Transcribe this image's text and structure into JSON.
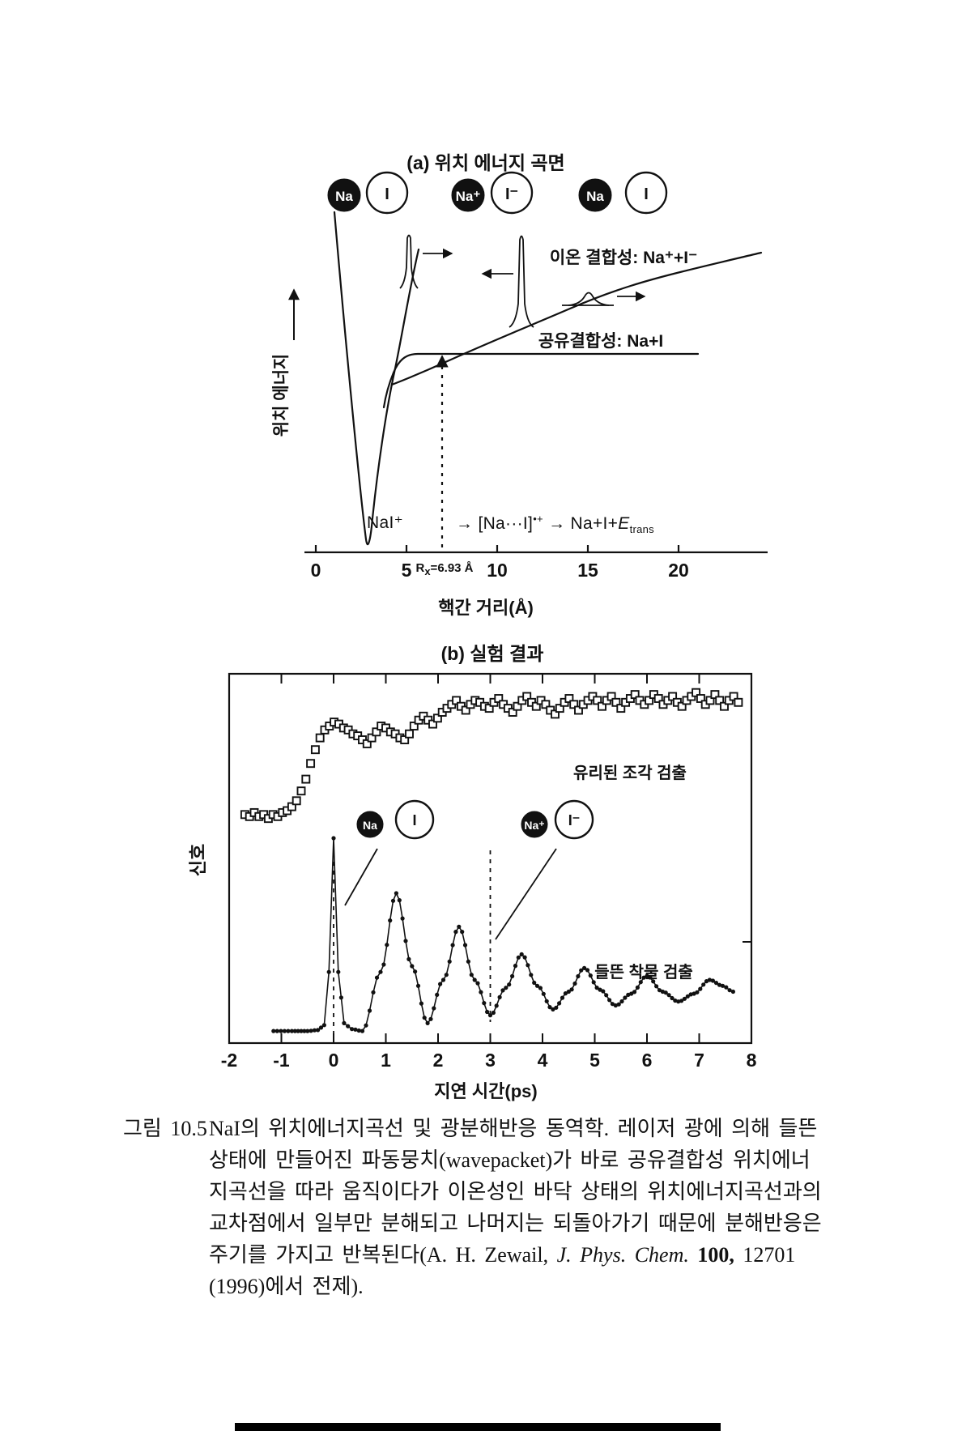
{
  "panel_a": {
    "title": "(a) 위치 에너지 곡면",
    "molecule_pairs": [
      {
        "filled": "Na",
        "open": "I"
      },
      {
        "filled": "Na⁺",
        "open": "I⁻"
      },
      {
        "filled": "Na",
        "open": "I"
      }
    ],
    "ionic_label": "이온 결합성: Na⁺+I⁻",
    "covalent_label": "공유결합성: Na+I",
    "y_axis_label": "위치 에너지",
    "x_axis_label": "핵간 거리(Å)",
    "x_ticks": [
      "0",
      "5",
      "10",
      "15",
      "20"
    ],
    "rx_r": "R",
    "rx_sub": "x",
    "rx_val": "=6.93 Å",
    "annotation": {
      "left": "NaI⁺",
      "arrow1": "→",
      "complex": "[Na···I]",
      "complex_sup": "•+",
      "arrow2": "→",
      "products": "Na+I+",
      "energy": "E",
      "energy_sub": "trans"
    }
  },
  "panel_b": {
    "title": "(b) 실험 결과",
    "y_axis_label": "신호",
    "x_axis_label": "지연 시간(ps)",
    "x_ticks": [
      "-2",
      "-1",
      "0",
      "1",
      "2",
      "3",
      "4",
      "5",
      "6",
      "7",
      "8"
    ],
    "series_free_label": "유리된 조각 검출",
    "series_complex_label": "들뜬 착물 검출",
    "molecule_pairs": [
      {
        "filled": "Na",
        "open": "I"
      },
      {
        "filled": "Na⁺",
        "open": "I⁻"
      }
    ]
  },
  "caption": {
    "figure_label": "그림 10.5",
    "line1": "NaI의 위치에너지곡선 및 광분해반응 동역학. 레이저 광에 의해 들뜬",
    "line2": "상태에 만들어진 파동뭉치(wavepacket)가 바로 공유결합성 위치에너",
    "line3": "지곡선을 따라 움직이다가 이온성인 바닥 상태의 위치에너지곡선과의",
    "line4": "교차점에서 일부만 분해되고 나머지는 되돌아가기 때문에 분해반응은",
    "line5_pre": "주기를 가지고 반복된다(A. H. Zewail, ",
    "line5_journal": "J. Phys. Chem.",
    "line5_vol": " 100,",
    "line5_post": " 12701",
    "line6": "(1996)에서 전제)."
  },
  "chart_data": [
    {
      "type": "line",
      "title": "(a) 위치 에너지 곡면",
      "xlabel": "핵간 거리(Å)",
      "ylabel": "위치 에너지",
      "x_ticks": [
        0,
        5,
        10,
        15,
        20
      ],
      "crossing_distance_angstrom": 6.93,
      "curves": [
        {
          "name": "ionic",
          "label": "이온 결합성: Na⁺+I⁻",
          "shape": "deep well near 2.7 Å rising to high asymptote"
        },
        {
          "name": "covalent",
          "label": "공유결합성: Na+I",
          "shape": "flat curve at lower energy crossing ionic at 6.93 Å"
        }
      ],
      "annotation": "NaI⁺ → [Na···I]•⁺ → Na+I+Etrans"
    },
    {
      "type": "line",
      "title": "(b) 실험 결과",
      "xlabel": "지연 시간(ps)",
      "ylabel": "신호",
      "xlim": [
        -2,
        8
      ],
      "x_ticks": [
        -2,
        -1,
        0,
        1,
        2,
        3,
        4,
        5,
        6,
        7,
        8
      ],
      "signal_units": "arbitrary",
      "series": [
        {
          "name": "유리된 조각 검출",
          "marker": "open-square",
          "points": [
            [
              -1.7,
              1.12
            ],
            [
              -1.61,
              1.11
            ],
            [
              -1.52,
              1.13
            ],
            [
              -1.43,
              1.11
            ],
            [
              -1.34,
              1.12
            ],
            [
              -1.25,
              1.1
            ],
            [
              -1.16,
              1.12
            ],
            [
              -1.07,
              1.11
            ],
            [
              -0.98,
              1.13
            ],
            [
              -0.89,
              1.14
            ],
            [
              -0.8,
              1.16
            ],
            [
              -0.71,
              1.19
            ],
            [
              -0.62,
              1.24
            ],
            [
              -0.53,
              1.3
            ],
            [
              -0.44,
              1.38
            ],
            [
              -0.35,
              1.45
            ],
            [
              -0.26,
              1.51
            ],
            [
              -0.17,
              1.55
            ],
            [
              -0.08,
              1.57
            ],
            [
              0.01,
              1.59
            ],
            [
              0.1,
              1.58
            ],
            [
              0.19,
              1.56
            ],
            [
              0.28,
              1.55
            ],
            [
              0.37,
              1.53
            ],
            [
              0.46,
              1.52
            ],
            [
              0.55,
              1.5
            ],
            [
              0.64,
              1.48
            ],
            [
              0.73,
              1.51
            ],
            [
              0.82,
              1.54
            ],
            [
              0.91,
              1.57
            ],
            [
              1.0,
              1.56
            ],
            [
              1.09,
              1.54
            ],
            [
              1.18,
              1.53
            ],
            [
              1.27,
              1.51
            ],
            [
              1.36,
              1.5
            ],
            [
              1.45,
              1.53
            ],
            [
              1.54,
              1.57
            ],
            [
              1.63,
              1.6
            ],
            [
              1.72,
              1.62
            ],
            [
              1.81,
              1.6
            ],
            [
              1.9,
              1.58
            ],
            [
              1.99,
              1.61
            ],
            [
              2.08,
              1.64
            ],
            [
              2.17,
              1.66
            ],
            [
              2.26,
              1.68
            ],
            [
              2.35,
              1.7
            ],
            [
              2.44,
              1.67
            ],
            [
              2.53,
              1.65
            ],
            [
              2.62,
              1.68
            ],
            [
              2.71,
              1.7
            ],
            [
              2.8,
              1.69
            ],
            [
              2.89,
              1.67
            ],
            [
              2.98,
              1.66
            ],
            [
              3.07,
              1.69
            ],
            [
              3.16,
              1.71
            ],
            [
              3.25,
              1.68
            ],
            [
              3.34,
              1.66
            ],
            [
              3.43,
              1.64
            ],
            [
              3.52,
              1.67
            ],
            [
              3.61,
              1.7
            ],
            [
              3.7,
              1.72
            ],
            [
              3.79,
              1.69
            ],
            [
              3.88,
              1.67
            ],
            [
              3.97,
              1.7
            ],
            [
              4.06,
              1.68
            ],
            [
              4.15,
              1.65
            ],
            [
              4.24,
              1.63
            ],
            [
              4.33,
              1.66
            ],
            [
              4.42,
              1.69
            ],
            [
              4.51,
              1.71
            ],
            [
              4.6,
              1.68
            ],
            [
              4.69,
              1.65
            ],
            [
              4.78,
              1.68
            ],
            [
              4.87,
              1.7
            ],
            [
              4.96,
              1.72
            ],
            [
              5.05,
              1.7
            ],
            [
              5.14,
              1.67
            ],
            [
              5.23,
              1.7
            ],
            [
              5.32,
              1.72
            ],
            [
              5.41,
              1.69
            ],
            [
              5.5,
              1.66
            ],
            [
              5.59,
              1.69
            ],
            [
              5.68,
              1.71
            ],
            [
              5.77,
              1.73
            ],
            [
              5.86,
              1.7
            ],
            [
              5.95,
              1.68
            ],
            [
              6.04,
              1.7
            ],
            [
              6.13,
              1.73
            ],
            [
              6.22,
              1.71
            ],
            [
              6.31,
              1.68
            ],
            [
              6.4,
              1.7
            ],
            [
              6.49,
              1.72
            ],
            [
              6.58,
              1.69
            ],
            [
              6.67,
              1.67
            ],
            [
              6.76,
              1.7
            ],
            [
              6.85,
              1.72
            ],
            [
              6.94,
              1.74
            ],
            [
              7.03,
              1.71
            ],
            [
              7.12,
              1.68
            ],
            [
              7.21,
              1.7
            ],
            [
              7.3,
              1.73
            ],
            [
              7.39,
              1.7
            ],
            [
              7.48,
              1.67
            ],
            [
              7.57,
              1.7
            ],
            [
              7.66,
              1.72
            ],
            [
              7.75,
              1.69
            ]
          ]
        },
        {
          "name": "들뜬 착물 검출",
          "marker": "filled-circle",
          "anchors": [
            [
              -1.15,
              0.02
            ],
            [
              -0.8,
              0.02
            ],
            [
              -0.5,
              0.02
            ],
            [
              -0.3,
              0.025
            ],
            [
              -0.18,
              0.05
            ],
            [
              -0.09,
              0.32
            ],
            [
              0.0,
              1.0
            ],
            [
              0.09,
              0.32
            ],
            [
              0.2,
              0.06
            ],
            [
              0.35,
              0.03
            ],
            [
              0.55,
              0.02
            ],
            [
              0.9,
              0.32
            ],
            [
              1.2,
              0.72
            ],
            [
              1.5,
              0.35
            ],
            [
              1.8,
              0.06
            ],
            [
              2.1,
              0.28
            ],
            [
              2.4,
              0.55
            ],
            [
              2.7,
              0.28
            ],
            [
              3.0,
              0.1
            ],
            [
              3.3,
              0.24
            ],
            [
              3.6,
              0.41
            ],
            [
              3.9,
              0.25
            ],
            [
              4.2,
              0.13
            ],
            [
              4.5,
              0.22
            ],
            [
              4.8,
              0.34
            ],
            [
              5.1,
              0.23
            ],
            [
              5.4,
              0.15
            ],
            [
              5.7,
              0.21
            ],
            [
              6.0,
              0.3
            ],
            [
              6.3,
              0.22
            ],
            [
              6.6,
              0.17
            ],
            [
              6.9,
              0.21
            ],
            [
              7.2,
              0.28
            ],
            [
              7.45,
              0.25
            ],
            [
              7.65,
              0.22
            ]
          ]
        }
      ],
      "dashed_guides_ps": [
        0,
        3
      ]
    }
  ]
}
